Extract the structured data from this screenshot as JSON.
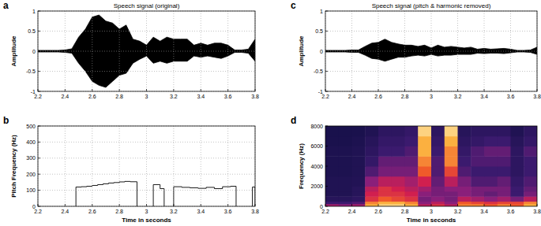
{
  "chart_data": [
    {
      "type": "area",
      "panel_label": "a",
      "title": "Speech signal (original)",
      "y_label": "Amplitude",
      "color": "#000000",
      "grid": true,
      "x": [
        2.2,
        2.25,
        2.3,
        2.35,
        2.4,
        2.45,
        2.5,
        2.55,
        2.6,
        2.65,
        2.7,
        2.75,
        2.8,
        2.85,
        2.9,
        2.95,
        3,
        3.05,
        3.1,
        3.15,
        3.2,
        3.25,
        3.3,
        3.35,
        3.4,
        3.45,
        3.5,
        3.55,
        3.6,
        3.65,
        3.7,
        3.75,
        3.8
      ],
      "upper": [
        0.02,
        0.02,
        0.02,
        0.02,
        0.03,
        0.06,
        0.35,
        0.55,
        0.85,
        0.9,
        0.75,
        0.7,
        0.55,
        0.65,
        0.3,
        0.25,
        0.15,
        0.35,
        0.25,
        0.35,
        0.3,
        0.3,
        0.3,
        0.15,
        0.2,
        0.15,
        0.2,
        0.2,
        0.15,
        0.03,
        0.03,
        0.05,
        0.3
      ],
      "lower": [
        -0.02,
        -0.02,
        -0.02,
        -0.02,
        -0.03,
        -0.05,
        -0.3,
        -0.5,
        -0.75,
        -0.85,
        -0.9,
        -0.75,
        -0.6,
        -0.55,
        -0.3,
        -0.2,
        -0.12,
        -0.3,
        -0.25,
        -0.3,
        -0.25,
        -0.25,
        -0.25,
        -0.12,
        -0.15,
        -0.12,
        -0.15,
        -0.18,
        -0.12,
        -0.03,
        -0.03,
        -0.05,
        -0.25
      ],
      "xlim": [
        2.2,
        3.8
      ],
      "ylim": [
        -1,
        1
      ],
      "xticks": [
        2.2,
        2.4,
        2.6,
        2.8,
        3,
        3.2,
        3.4,
        3.6,
        3.8
      ],
      "yticks": [
        -1,
        -0.5,
        0,
        0.5,
        1
      ]
    },
    {
      "type": "line",
      "panel_label": "b",
      "y_label": "Pitch Frequency (Hz)",
      "x_label": "Time in seconds",
      "color": "#000000",
      "line_style": "step",
      "grid": true,
      "x": [
        2.48,
        2.52,
        2.56,
        2.6,
        2.64,
        2.68,
        2.72,
        2.76,
        2.8,
        2.84,
        2.88,
        2.93,
        3.05,
        3.1,
        3.13,
        3.2,
        3.26,
        3.32,
        3.38,
        3.44,
        3.5,
        3.56,
        3.62,
        3.66,
        3.78,
        3.8
      ],
      "values": [
        120,
        122,
        125,
        130,
        135,
        140,
        145,
        148,
        152,
        155,
        153,
        null,
        135,
        110,
        null,
        122,
        118,
        115,
        112,
        118,
        110,
        122,
        125,
        null,
        120,
        null
      ],
      "xlim": [
        2.2,
        3.8
      ],
      "ylim": [
        0,
        500
      ],
      "xticks": [
        2.2,
        2.4,
        2.6,
        2.8,
        3,
        3.2,
        3.4,
        3.6,
        3.8
      ],
      "yticks": [
        0,
        100,
        200,
        300,
        400,
        500
      ]
    },
    {
      "type": "area",
      "panel_label": "c",
      "title": "Speech signal (pitch & harmonic removed)",
      "y_label": "Amplitude",
      "color": "#000000",
      "grid": true,
      "x": [
        2.2,
        2.25,
        2.3,
        2.35,
        2.4,
        2.45,
        2.5,
        2.55,
        2.6,
        2.65,
        2.7,
        2.75,
        2.8,
        2.85,
        2.9,
        2.95,
        3,
        3.05,
        3.1,
        3.15,
        3.2,
        3.25,
        3.3,
        3.35,
        3.4,
        3.45,
        3.5,
        3.55,
        3.6,
        3.65,
        3.7,
        3.75,
        3.8
      ],
      "upper": [
        0.02,
        0.02,
        0.02,
        0.02,
        0.03,
        0.03,
        0.12,
        0.2,
        0.22,
        0.3,
        0.22,
        0.18,
        0.15,
        0.15,
        0.12,
        0.15,
        0.08,
        0.15,
        0.1,
        0.12,
        0.1,
        0.08,
        0.1,
        0.05,
        0.07,
        0.05,
        0.06,
        0.07,
        0.05,
        0.02,
        0.02,
        0.03,
        0.1
      ],
      "lower": [
        -0.02,
        -0.02,
        -0.02,
        -0.02,
        -0.03,
        -0.03,
        -0.1,
        -0.18,
        -0.2,
        -0.25,
        -0.2,
        -0.15,
        -0.15,
        -0.12,
        -0.1,
        -0.12,
        -0.08,
        -0.12,
        -0.1,
        -0.1,
        -0.08,
        -0.08,
        -0.08,
        -0.05,
        -0.06,
        -0.05,
        -0.05,
        -0.06,
        -0.04,
        -0.02,
        -0.02,
        -0.03,
        -0.08
      ],
      "xlim": [
        2.2,
        3.8
      ],
      "ylim": [
        -1,
        1
      ],
      "xticks": [
        2.2,
        2.4,
        2.6,
        2.8,
        3,
        3.2,
        3.4,
        3.6,
        3.8
      ],
      "yticks": [
        -1,
        -0.5,
        0,
        0.5,
        1
      ]
    },
    {
      "type": "heatmap",
      "panel_label": "d",
      "y_label": "Frequency (Hz)",
      "x_label": "Time in seconds",
      "grid": false,
      "x_edges": [
        2.2,
        2.3,
        2.4,
        2.5,
        2.6,
        2.7,
        2.8,
        2.9,
        3,
        3.1,
        3.2,
        3.3,
        3.4,
        3.5,
        3.6,
        3.7,
        3.8
      ],
      "y_edges": [
        0,
        250,
        500,
        1000,
        1500,
        2000,
        3000,
        4000,
        5000,
        6000,
        7000,
        8000
      ],
      "cells": [
        [
          0.55,
          0.5,
          0.55,
          0.9,
          0.95,
          0.95,
          0.9,
          0.6,
          0.7,
          0.6,
          0.85,
          0.85,
          0.8,
          0.85,
          0.8,
          0.9
        ],
        [
          0.3,
          0.3,
          0.35,
          0.85,
          0.9,
          0.9,
          0.85,
          0.5,
          0.6,
          0.5,
          0.8,
          0.75,
          0.7,
          0.75,
          0.75,
          0.85
        ],
        [
          0.15,
          0.15,
          0.2,
          0.7,
          0.8,
          0.75,
          0.7,
          0.45,
          0.5,
          0.45,
          0.6,
          0.55,
          0.5,
          0.55,
          0.45,
          0.6
        ],
        [
          0.1,
          0.1,
          0.15,
          0.65,
          0.7,
          0.7,
          0.65,
          0.5,
          0.45,
          0.45,
          0.5,
          0.45,
          0.4,
          0.45,
          0.3,
          0.45
        ],
        [
          0.1,
          0.1,
          0.15,
          0.6,
          0.7,
          0.65,
          0.6,
          0.55,
          0.45,
          0.5,
          0.5,
          0.45,
          0.45,
          0.45,
          0.3,
          0.4
        ],
        [
          0.1,
          0.1,
          0.12,
          0.5,
          0.6,
          0.6,
          0.55,
          0.65,
          0.4,
          0.6,
          0.45,
          0.35,
          0.35,
          0.4,
          0.25,
          0.35
        ],
        [
          0.08,
          0.08,
          0.1,
          0.35,
          0.45,
          0.45,
          0.45,
          0.8,
          0.35,
          0.75,
          0.35,
          0.3,
          0.3,
          0.3,
          0.2,
          0.3
        ],
        [
          0.08,
          0.08,
          0.1,
          0.25,
          0.4,
          0.4,
          0.4,
          0.85,
          0.35,
          0.85,
          0.3,
          0.35,
          0.35,
          0.35,
          0.2,
          0.3
        ],
        [
          0.08,
          0.08,
          0.1,
          0.2,
          0.3,
          0.3,
          0.35,
          0.9,
          0.3,
          0.85,
          0.25,
          0.35,
          0.4,
          0.4,
          0.2,
          0.35
        ],
        [
          0.06,
          0.06,
          0.08,
          0.15,
          0.25,
          0.25,
          0.3,
          0.9,
          0.25,
          0.9,
          0.2,
          0.25,
          0.3,
          0.3,
          0.15,
          0.25
        ],
        [
          0.05,
          0.05,
          0.06,
          0.1,
          0.2,
          0.2,
          0.25,
          0.95,
          0.2,
          0.95,
          0.15,
          0.2,
          0.2,
          0.2,
          0.1,
          0.2
        ]
      ],
      "xlim": [
        2.2,
        3.8
      ],
      "ylim": [
        0,
        8000
      ],
      "xticks": [
        2.2,
        2.4,
        2.6,
        2.8,
        3,
        3.2,
        3.4,
        3.6,
        3.8
      ],
      "yticks": [
        0,
        2000,
        4000,
        6000,
        8000
      ]
    }
  ]
}
